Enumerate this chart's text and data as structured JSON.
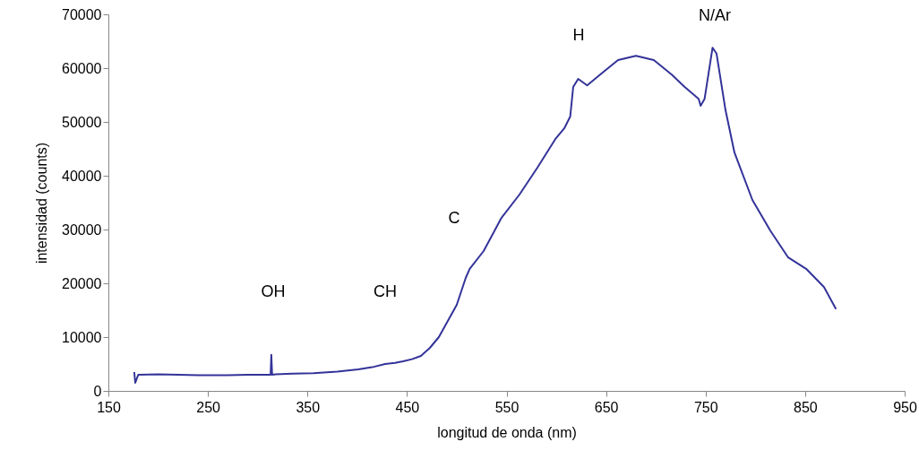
{
  "chart_data": {
    "type": "line",
    "xlabel": "longitud de onda (nm)",
    "ylabel": "intensidad (counts)",
    "x": [
      176,
      177,
      180,
      200,
      221,
      240,
      266,
      290,
      311,
      313,
      313.7,
      314.5,
      318,
      335,
      356,
      380,
      401,
      415,
      428,
      438,
      446,
      455,
      464,
      473,
      482,
      491,
      500,
      509,
      513,
      527,
      545,
      563,
      581,
      599,
      608,
      614,
      617,
      622,
      631,
      644,
      662,
      680,
      698,
      716,
      729,
      743,
      745,
      749,
      757,
      761,
      770,
      779,
      797,
      815,
      833,
      851,
      869,
      881
    ],
    "series": [
      {
        "color": "#333399",
        "values": [
          3500,
          1500,
          3000,
          3100,
          3000,
          2900,
          2900,
          3000,
          3000,
          3000,
          6700,
          3000,
          3100,
          3200,
          3300,
          3600,
          4000,
          4400,
          5000,
          5200,
          5500,
          5900,
          6500,
          8000,
          10000,
          13000,
          16000,
          21000,
          22700,
          26000,
          32200,
          36500,
          41500,
          46800,
          48800,
          51000,
          56500,
          58000,
          56800,
          58800,
          61500,
          62300,
          61500,
          58800,
          56500,
          54300,
          53000,
          54300,
          63800,
          62700,
          52200,
          44300,
          35500,
          29800,
          24800,
          22700,
          19300,
          15200
        ]
      }
    ],
    "xlim": [
      150,
      950
    ],
    "xticks": [
      150,
      250,
      350,
      450,
      550,
      650,
      750,
      850,
      950
    ],
    "ylim": [
      0,
      70000
    ],
    "yticks": [
      0,
      10000,
      20000,
      30000,
      40000,
      50000,
      60000,
      70000
    ],
    "grid": false,
    "line_style": "solid",
    "marker": "none",
    "annotations": [
      "OH",
      "CH",
      "C",
      "H",
      "N/Ar"
    ]
  }
}
